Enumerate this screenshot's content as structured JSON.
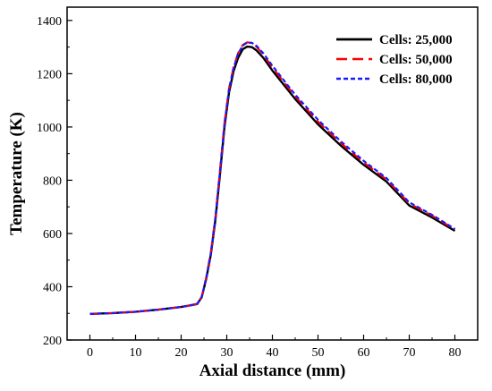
{
  "chart_data": {
    "type": "line",
    "title": "",
    "xlabel": "Axial distance (mm)",
    "ylabel": "Temperature (K)",
    "xlim": [
      -5,
      85
    ],
    "ylim": [
      200,
      1450
    ],
    "xticks": [
      0,
      10,
      20,
      30,
      40,
      50,
      60,
      70,
      80
    ],
    "yticks": [
      200,
      400,
      600,
      800,
      1000,
      1200,
      1400
    ],
    "grid": false,
    "legend_position": "top-right",
    "series": [
      {
        "name": "Cells: 25,000",
        "color": "#000000",
        "style": "solid",
        "x": [
          0,
          5,
          10,
          15,
          20,
          22,
          23.5,
          24.5,
          25.5,
          26.5,
          27.5,
          28.5,
          29.5,
          30.5,
          31.5,
          32.5,
          33.5,
          34.5,
          35.5,
          36.5,
          38,
          40,
          45,
          50,
          55,
          60,
          65,
          70,
          75,
          80
        ],
        "y": [
          298,
          301,
          306,
          314,
          324,
          330,
          335,
          360,
          430,
          520,
          650,
          820,
          1000,
          1130,
          1210,
          1260,
          1292,
          1302,
          1300,
          1288,
          1260,
          1212,
          1105,
          1010,
          930,
          858,
          795,
          705,
          660,
          610
        ]
      },
      {
        "name": "Cells: 50,000",
        "color": "#ff0000",
        "style": "long-dash",
        "x": [
          0,
          5,
          10,
          15,
          20,
          22,
          23.5,
          24.5,
          25.5,
          26.5,
          27.5,
          28.5,
          29.5,
          30.5,
          31.5,
          32.5,
          33.5,
          34.5,
          35.5,
          36.5,
          38,
          40,
          45,
          50,
          55,
          60,
          65,
          70,
          75,
          80
        ],
        "y": [
          298,
          301,
          306,
          314,
          324,
          330,
          336,
          362,
          435,
          528,
          660,
          835,
          1015,
          1145,
          1225,
          1278,
          1308,
          1318,
          1315,
          1302,
          1272,
          1224,
          1115,
          1020,
          940,
          867,
          803,
          713,
          667,
          615
        ]
      },
      {
        "name": "Cells: 80,000",
        "color": "#1a1aff",
        "style": "short-dash",
        "x": [
          0,
          5,
          10,
          15,
          20,
          22,
          23.5,
          24.5,
          25.5,
          26.5,
          27.5,
          28.5,
          29.5,
          30.5,
          31.5,
          32.5,
          33.5,
          34.5,
          35.5,
          36.5,
          38,
          40,
          45,
          50,
          55,
          60,
          65,
          70,
          75,
          80
        ],
        "y": [
          298,
          301,
          306,
          314,
          324,
          330,
          336,
          361,
          433,
          526,
          657,
          832,
          1012,
          1142,
          1222,
          1275,
          1306,
          1317,
          1316,
          1305,
          1277,
          1230,
          1121,
          1027,
          946,
          873,
          808,
          717,
          670,
          617
        ]
      }
    ]
  }
}
